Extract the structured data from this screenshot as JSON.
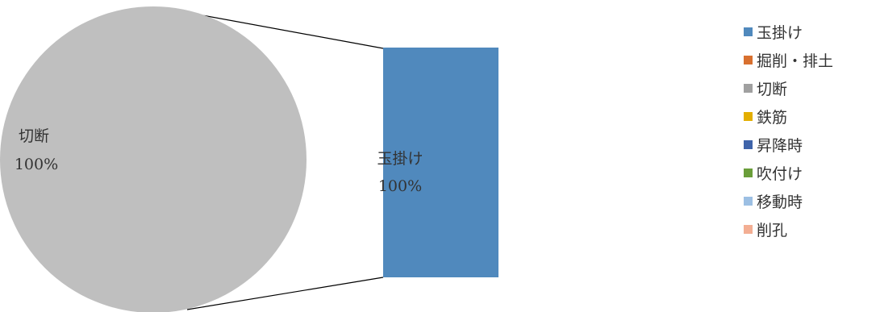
{
  "chart_data": {
    "type": "pie",
    "subtype": "pie-of-bar",
    "pie": {
      "slices": [
        {
          "label": "切断",
          "value": 100,
          "percent_label": "100%",
          "color": "#BFBFBF"
        }
      ]
    },
    "bar": {
      "segments": [
        {
          "label": "玉掛け",
          "value": 100,
          "percent_label": "100%",
          "color": "#5089BD"
        }
      ]
    },
    "legend": {
      "position": "right",
      "items": [
        {
          "label": "玉掛け",
          "color": "#5089BD"
        },
        {
          "label": "掘削・排土",
          "color": "#D8702F"
        },
        {
          "label": "切断",
          "color": "#A0A0A0"
        },
        {
          "label": "鉄筋",
          "color": "#E3AE00"
        },
        {
          "label": "昇降時",
          "color": "#3F64AA"
        },
        {
          "label": "吹付け",
          "color": "#6A9E3A"
        },
        {
          "label": "移動時",
          "color": "#9CBFE3"
        },
        {
          "label": "削孔",
          "color": "#F3AE93"
        }
      ]
    }
  }
}
